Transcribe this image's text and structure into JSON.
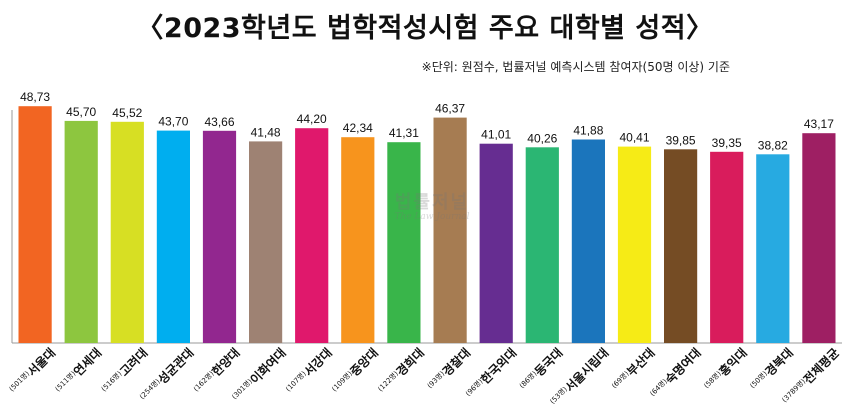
{
  "header": {
    "title": "〈2023학년도 법학적성시험 주요 대학별 성적〉",
    "subtitle": "※단위: 원점수, 법률저널 예측시스템 참여자(50명 이상) 기준"
  },
  "watermark": {
    "main": "법률저널",
    "sub": "The Law Journal"
  },
  "chart_data": {
    "type": "bar",
    "title": "〈2023학년도 법학적성시험 주요 대학별 성적〉",
    "subtitle": "※단위: 원점수, 법률저널 예측시스템 참여자(50명 이상) 기준",
    "categories": [
      "서울대",
      "연세대",
      "고려대",
      "성균관대",
      "한양대",
      "이화여대",
      "서강대",
      "중앙대",
      "경희대",
      "경찰대",
      "한국외대",
      "동국대",
      "서울시립대",
      "부산대",
      "숙명여대",
      "홍익대",
      "경북대",
      "전체평균"
    ],
    "category_counts": [
      "(501명)",
      "(511명)",
      "(516명)",
      "(254명)",
      "(162명)",
      "(301명)",
      "(107명)",
      "(109명)",
      "(122명)",
      "(93명)",
      "(96명)",
      "(86명)",
      "(53명)",
      "(69명)",
      "(64명)",
      "(58명)",
      "(50명)",
      "(3789명)"
    ],
    "values": [
      48.73,
      45.7,
      45.52,
      43.7,
      43.66,
      41.48,
      44.2,
      42.34,
      41.31,
      46.37,
      41.01,
      40.26,
      41.88,
      40.41,
      39.85,
      39.35,
      38.82,
      43.17
    ],
    "value_labels": [
      "48,73",
      "45,70",
      "45,52",
      "43,70",
      "43,66",
      "41,48",
      "44,20",
      "42,34",
      "41,31",
      "46,37",
      "41,01",
      "40,26",
      "41,88",
      "40,41",
      "39,85",
      "39,35",
      "38,82",
      "43,17"
    ],
    "colors": [
      "#f26522",
      "#8dc63f",
      "#d7df23",
      "#00aeef",
      "#92278f",
      "#9e8273",
      "#e0186c",
      "#f7941d",
      "#39b54a",
      "#a67c52",
      "#662d91",
      "#2bb673",
      "#1b75bc",
      "#f6eb16",
      "#754c24",
      "#d91c5c",
      "#27aae1",
      "#9e1f63"
    ],
    "xlabel": "",
    "ylabel": "",
    "ylim": [
      0,
      50
    ],
    "grid": false,
    "legend": "none"
  }
}
